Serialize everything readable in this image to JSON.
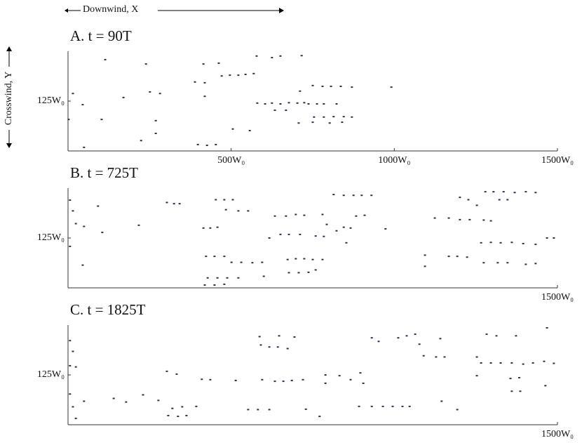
{
  "figure": {
    "x_label": "Downwind, X",
    "y_label": "Crosswind, Y"
  },
  "chart_data": [
    {
      "type": "scatter",
      "title": "A. t = 90T",
      "color": "#2e2e4a",
      "xlim": [
        0,
        1500
      ],
      "ylim": [
        0,
        250
      ],
      "xticks": [
        {
          "value": 500,
          "label": "500W₀"
        },
        {
          "value": 1000,
          "label": "1000W₀"
        },
        {
          "value": 1500,
          "label": "1500W₀"
        }
      ],
      "yticks": [
        {
          "value": 125,
          "label": "125W₀"
        }
      ],
      "x": [
        114,
        239,
        15,
        45,
        2,
        103,
        170,
        251,
        282,
        269,
        269,
        224,
        49,
        389,
        419,
        415,
        462,
        419,
        471,
        496,
        522,
        544,
        569,
        578,
        625,
        651,
        716,
        505,
        557,
        398,
        426,
        453,
        580,
        604,
        625,
        651,
        677,
        634,
        668,
        711,
        703,
        724,
        707,
        750,
        780,
        806,
        836,
        870,
        737,
        763,
        784,
        823,
        754,
        784,
        814,
        845,
        870,
        750,
        802,
        840,
        991
      ],
      "y": [
        229,
        218,
        144,
        116,
        79,
        79,
        134,
        148,
        144,
        76,
        44,
        26,
        9,
        173,
        171,
        218,
        220,
        137,
        188,
        190,
        190,
        192,
        194,
        238,
        234,
        238,
        239,
        55,
        51,
        16,
        14,
        16,
        120,
        118,
        120,
        118,
        121,
        102,
        102,
        150,
        120,
        121,
        70,
        164,
        162,
        162,
        162,
        160,
        118,
        118,
        118,
        118,
        85,
        85,
        86,
        86,
        85,
        72,
        70,
        72,
        160
      ]
    },
    {
      "type": "scatter",
      "title": "B. t = 725T",
      "color": "#2e2e4a",
      "xlim": [
        0,
        1500
      ],
      "ylim": [
        0,
        250
      ],
      "xticks": [
        {
          "value": 1500,
          "label": "1500W₀"
        }
      ],
      "yticks": [
        {
          "value": 125,
          "label": "125W₀"
        }
      ],
      "x": [
        6,
        15,
        24,
        6,
        49,
        45,
        92,
        105,
        217,
        303,
        325,
        342,
        453,
        479,
        505,
        484,
        522,
        552,
        415,
        436,
        458,
        423,
        449,
        479,
        428,
        458,
        488,
        522,
        419,
        449,
        479,
        501,
        531,
        565,
        595,
        600,
        617,
        634,
        668,
        698,
        724,
        651,
        677,
        711,
        673,
        698,
        724,
        750,
        780,
        677,
        707,
        737,
        759,
        759,
        784,
        780,
        793,
        814,
        845,
        875,
        900,
        930,
        823,
        845,
        866,
        853,
        883,
        909,
        973,
        1094,
        1094,
        1124,
        1167,
        1201,
        1231,
        1274,
        1296,
        1201,
        1227,
        1253,
        1279,
        1304,
        1335,
        1369,
        1403,
        1433,
        1322,
        1347,
        1167,
        1193,
        1223,
        1266,
        1296,
        1326,
        1360,
        1395,
        1433,
        1274,
        1317,
        1347,
        1403,
        1433,
        1468,
        1489
      ],
      "y": [
        220,
        193,
        161,
        104,
        154,
        57,
        205,
        139,
        157,
        214,
        211,
        211,
        221,
        221,
        221,
        196,
        193,
        193,
        150,
        150,
        152,
        79,
        79,
        79,
        25,
        25,
        25,
        25,
        7,
        7,
        9,
        64,
        64,
        63,
        64,
        29,
        125,
        180,
        180,
        184,
        182,
        134,
        134,
        134,
        71,
        73,
        73,
        71,
        71,
        38,
        38,
        39,
        45,
        130,
        129,
        184,
        159,
        234,
        232,
        232,
        232,
        232,
        143,
        152,
        150,
        113,
        180,
        182,
        148,
        82,
        54,
        175,
        175,
        171,
        171,
        170,
        168,
        227,
        221,
        207,
        241,
        241,
        241,
        239,
        241,
        239,
        221,
        221,
        79,
        79,
        77,
        113,
        114,
        113,
        114,
        111,
        109,
        63,
        63,
        63,
        59,
        61,
        125,
        125
      ]
    },
    {
      "type": "scatter",
      "title": "C. t = 1825T",
      "color": "#2e2e4a",
      "xlim": [
        0,
        1500
      ],
      "ylim": [
        0,
        250
      ],
      "xticks": [
        {
          "value": 1500,
          "label": "1500W₀"
        }
      ],
      "yticks": [
        {
          "value": 125,
          "label": "125W₀"
        }
      ],
      "x": [
        6,
        15,
        6,
        24,
        6,
        15,
        24,
        49,
        140,
        178,
        230,
        277,
        303,
        333,
        320,
        350,
        393,
        307,
        337,
        363,
        410,
        436,
        514,
        552,
        582,
        617,
        591,
        617,
        643,
        673,
        587,
        647,
        694,
        595,
        634,
        660,
        686,
        720,
        729,
        771,
        789,
        789,
        832,
        866,
        896,
        905,
        931,
        952,
        892,
        931,
        965,
        995,
        1025,
        1047,
        1012,
        1038,
        1064,
        1077,
        1090,
        1128,
        1154,
        1141,
        1145,
        1193,
        1253,
        1253,
        1283,
        1313,
        1373,
        1266,
        1296,
        1326,
        1360,
        1395,
        1425,
        1459,
        1489,
        1356,
        1383,
        1360,
        1386,
        1463,
        1468
      ],
      "y": [
        211,
        184,
        148,
        145,
        77,
        45,
        16,
        59,
        66,
        57,
        75,
        61,
        134,
        127,
        41,
        45,
        46,
        23,
        21,
        23,
        114,
        113,
        111,
        38,
        38,
        38,
        200,
        195,
        195,
        191,
        221,
        223,
        220,
        113,
        109,
        109,
        111,
        113,
        39,
        21,
        125,
        104,
        123,
        113,
        130,
        104,
        218,
        209,
        46,
        46,
        46,
        46,
        46,
        46,
        218,
        223,
        227,
        202,
        173,
        170,
        170,
        216,
        59,
        38,
        170,
        123,
        227,
        223,
        223,
        155,
        155,
        155,
        155,
        152,
        155,
        159,
        154,
        116,
        118,
        84,
        84,
        98,
        243
      ]
    }
  ]
}
